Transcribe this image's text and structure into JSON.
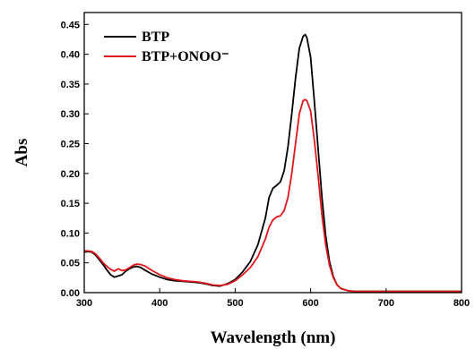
{
  "chart_data": {
    "type": "line",
    "xlabel": "Wavelength (nm)",
    "ylabel": "Abs",
    "xlim": [
      300,
      800
    ],
    "ylim": [
      0,
      0.47
    ],
    "x_ticks": [
      "300",
      "400",
      "500",
      "600",
      "700",
      "800"
    ],
    "y_ticks": [
      "0.00",
      "0.05",
      "0.10",
      "0.15",
      "0.20",
      "0.25",
      "0.30",
      "0.35",
      "0.40",
      "0.45"
    ],
    "grid": false,
    "legend_position": "top-left",
    "series": [
      {
        "name": "BTP",
        "color": "#000000",
        "x": [
          300,
          305,
          310,
          315,
          320,
          325,
          330,
          335,
          340,
          345,
          350,
          355,
          360,
          365,
          370,
          375,
          380,
          390,
          400,
          410,
          420,
          430,
          440,
          450,
          460,
          470,
          480,
          490,
          500,
          510,
          520,
          530,
          540,
          545,
          550,
          555,
          560,
          565,
          570,
          575,
          580,
          585,
          590,
          593,
          595,
          600,
          605,
          610,
          615,
          620,
          625,
          630,
          635,
          640,
          650,
          660,
          680,
          700,
          750,
          800
        ],
        "y": [
          0.068,
          0.069,
          0.068,
          0.063,
          0.055,
          0.047,
          0.038,
          0.03,
          0.026,
          0.028,
          0.03,
          0.036,
          0.04,
          0.043,
          0.044,
          0.042,
          0.038,
          0.031,
          0.026,
          0.022,
          0.02,
          0.019,
          0.018,
          0.017,
          0.015,
          0.012,
          0.011,
          0.015,
          0.022,
          0.035,
          0.052,
          0.08,
          0.125,
          0.16,
          0.175,
          0.18,
          0.186,
          0.205,
          0.245,
          0.3,
          0.36,
          0.41,
          0.43,
          0.433,
          0.428,
          0.395,
          0.32,
          0.24,
          0.16,
          0.095,
          0.052,
          0.027,
          0.013,
          0.007,
          0.003,
          0.002,
          0.002,
          0.002,
          0.002,
          0.002
        ]
      },
      {
        "name": "BTP+ONOO⁻",
        "color": "#e0161b",
        "x": [
          300,
          305,
          310,
          315,
          320,
          325,
          330,
          335,
          340,
          345,
          350,
          355,
          360,
          365,
          370,
          375,
          380,
          390,
          400,
          410,
          420,
          430,
          440,
          450,
          460,
          470,
          480,
          490,
          500,
          510,
          520,
          530,
          540,
          545,
          550,
          555,
          560,
          565,
          570,
          575,
          580,
          585,
          590,
          593,
          595,
          600,
          605,
          610,
          615,
          620,
          625,
          630,
          635,
          640,
          650,
          660,
          680,
          700,
          750,
          800
        ],
        "y": [
          0.07,
          0.07,
          0.069,
          0.065,
          0.058,
          0.05,
          0.044,
          0.039,
          0.036,
          0.04,
          0.037,
          0.038,
          0.042,
          0.046,
          0.048,
          0.047,
          0.045,
          0.037,
          0.03,
          0.025,
          0.022,
          0.02,
          0.019,
          0.018,
          0.016,
          0.013,
          0.012,
          0.014,
          0.02,
          0.03,
          0.042,
          0.06,
          0.09,
          0.11,
          0.122,
          0.127,
          0.129,
          0.138,
          0.16,
          0.2,
          0.25,
          0.3,
          0.322,
          0.324,
          0.322,
          0.305,
          0.255,
          0.195,
          0.13,
          0.08,
          0.046,
          0.025,
          0.013,
          0.007,
          0.003,
          0.002,
          0.002,
          0.002,
          0.002,
          0.002
        ]
      }
    ]
  }
}
